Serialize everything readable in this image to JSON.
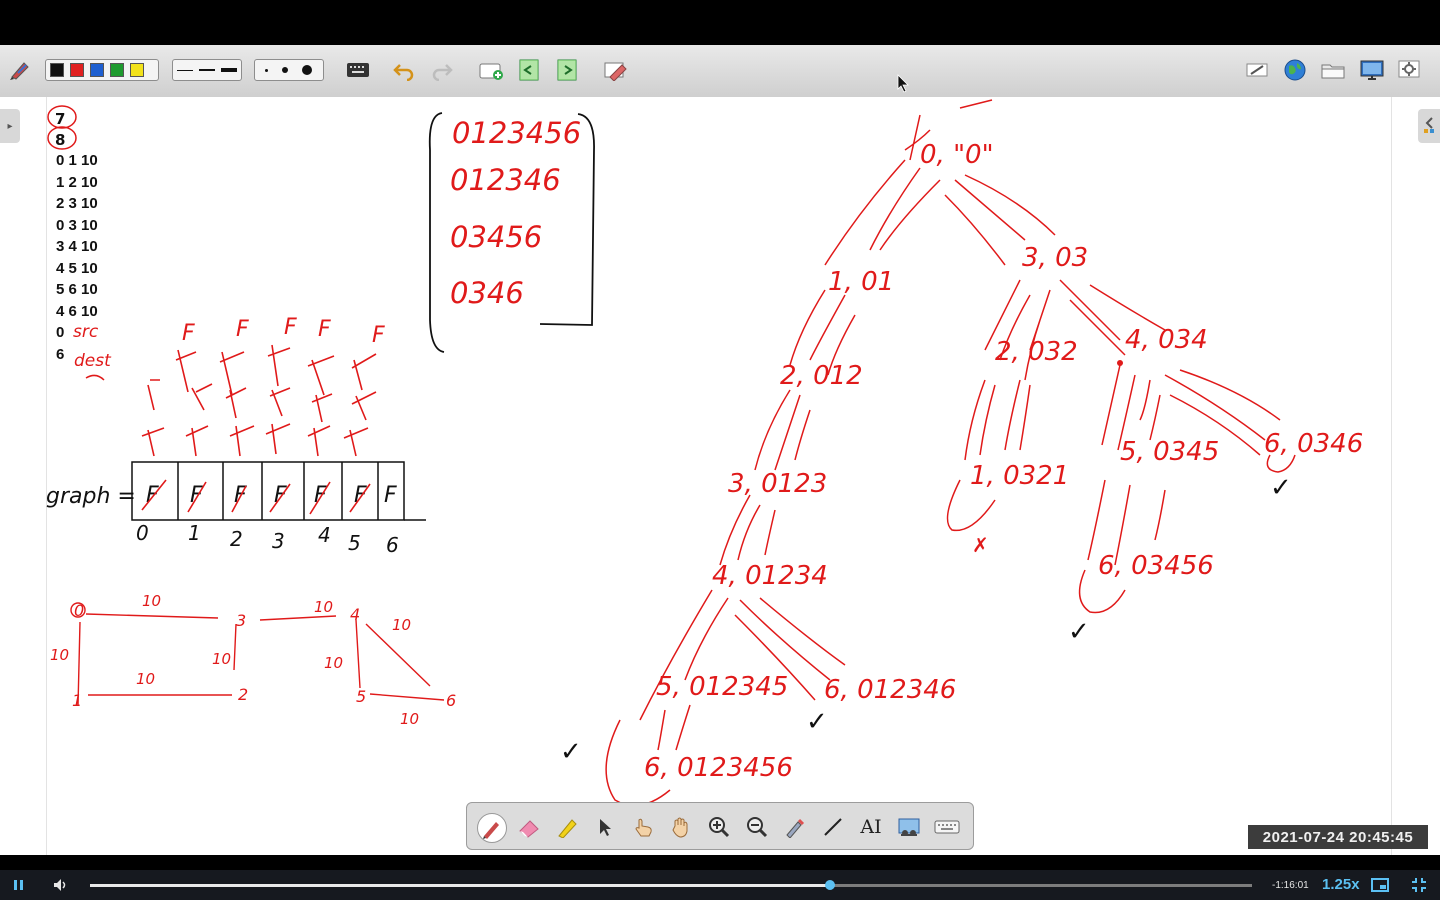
{
  "window": {
    "title": ""
  },
  "toolbar": {
    "colors": [
      "#111111",
      "#e02020",
      "#1e5fd0",
      "#1e9a2e",
      "#f2e21a"
    ],
    "line_widths": [
      1,
      2,
      4
    ],
    "dot_sizes": [
      3,
      6,
      10
    ],
    "icons": [
      "pen-color-icon",
      "keyboard-icon",
      "undo-icon",
      "redo-icon",
      "new-page-icon",
      "prev-page-icon",
      "next-page-icon",
      "clear-icon",
      "edit-icon",
      "globe-icon",
      "folder-icon",
      "screen-icon",
      "settings-icon"
    ]
  },
  "notes": {
    "circled": [
      "7",
      "8"
    ],
    "edges": [
      "0 1 10",
      "1 2 10",
      "2 3 10",
      "0 3 10",
      "3 4 10",
      "4 5 10",
      "5 6 10",
      "4 6 10"
    ],
    "src_label": "0",
    "src_note": "src",
    "dest_label": "6",
    "dest_note": "dest"
  },
  "paths_box": [
    "0123456",
    "012346",
    "03456",
    "0346"
  ],
  "graph_array": {
    "label": "graph =",
    "cells": [
      "F",
      "F",
      "F",
      "F",
      "F",
      "F",
      "F"
    ],
    "indices": [
      "0",
      "1",
      "2",
      "3",
      "4",
      "5",
      "6"
    ],
    "stack_marks": [
      "F",
      "F",
      "F",
      "F",
      "F"
    ]
  },
  "graph_sketch": {
    "nodes": [
      "0",
      "3",
      "4",
      "1",
      "2",
      "5",
      "6"
    ],
    "weights": [
      "10",
      "10",
      "10",
      "10",
      "10",
      "10",
      "10",
      "10"
    ]
  },
  "recursion_tree": {
    "root": "0, \"0\"",
    "nodes": [
      "1, 01",
      "2, 012",
      "3, 0123",
      "4, 01234",
      "5, 012345",
      "6, 0123456",
      "6, 012346",
      "3, 03",
      "2, 032",
      "1, 0321",
      "4, 034",
      "5, 0345",
      "6, 03456",
      "6, 0346"
    ],
    "marks": [
      "✓",
      "✓",
      "✓",
      "✓",
      "✗"
    ]
  },
  "pen_toolbar": {
    "tools": [
      "pen-icon",
      "eraser-icon",
      "highlighter-icon",
      "pointer-icon",
      "pointing-hand-icon",
      "hand-icon",
      "zoom-in-icon",
      "zoom-out-icon",
      "laser-pen-icon",
      "line-icon",
      "text-icon",
      "screenshot-icon",
      "keyboard-icon"
    ],
    "text_tool_label": "AI"
  },
  "timestamp": "2021-07-24  20:45:45",
  "player": {
    "time_remaining": "-1:16:01",
    "speed": "1.25x",
    "progress": 0.637
  }
}
